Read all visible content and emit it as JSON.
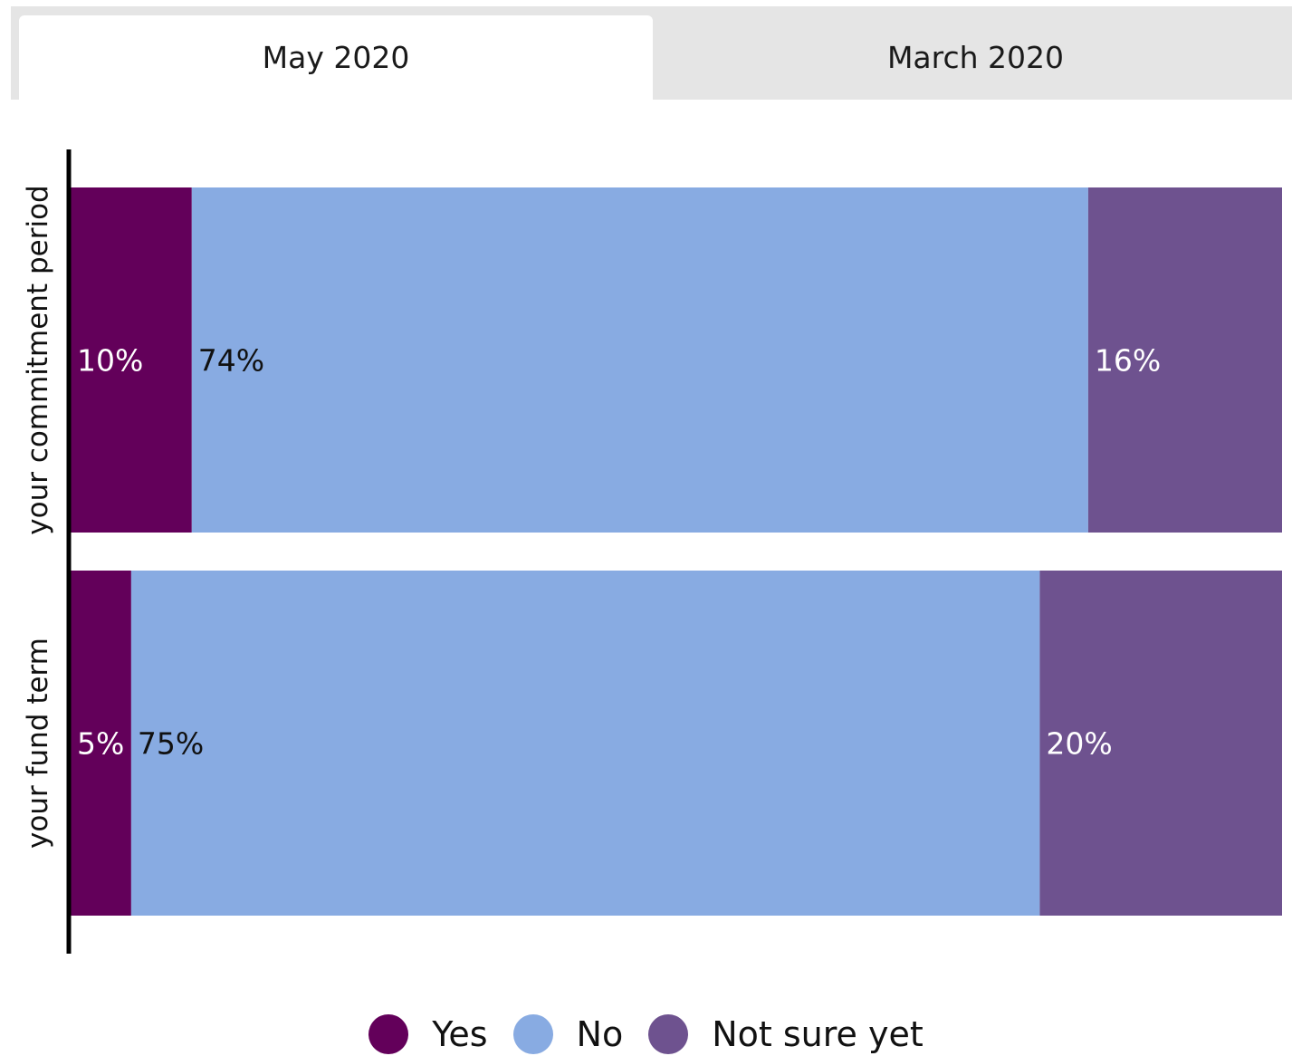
{
  "tabs": [
    {
      "label": "May 2020",
      "active": true
    },
    {
      "label": "March 2020",
      "active": false
    }
  ],
  "colors": {
    "yes": "#63005a",
    "no": "#88abe2",
    "not_sure": "#6e528f",
    "axis": "#000000",
    "label_on_dark": "#ffffff",
    "label_on_light": "#111111"
  },
  "chart_data": {
    "type": "bar",
    "orientation": "horizontal",
    "stacked": true,
    "categories": [
      "your commitment period",
      "your fund term"
    ],
    "series": [
      {
        "name": "Yes",
        "values": [
          10,
          5
        ],
        "labels": [
          "10%",
          "5%"
        ]
      },
      {
        "name": "No",
        "values": [
          74,
          75
        ],
        "labels": [
          "74%",
          "75%"
        ]
      },
      {
        "name": "Not sure yet",
        "values": [
          16,
          20
        ],
        "labels": [
          "16%",
          "20%"
        ]
      }
    ],
    "xlim": [
      0,
      100
    ],
    "grid": false,
    "legend": "bottom-center"
  }
}
